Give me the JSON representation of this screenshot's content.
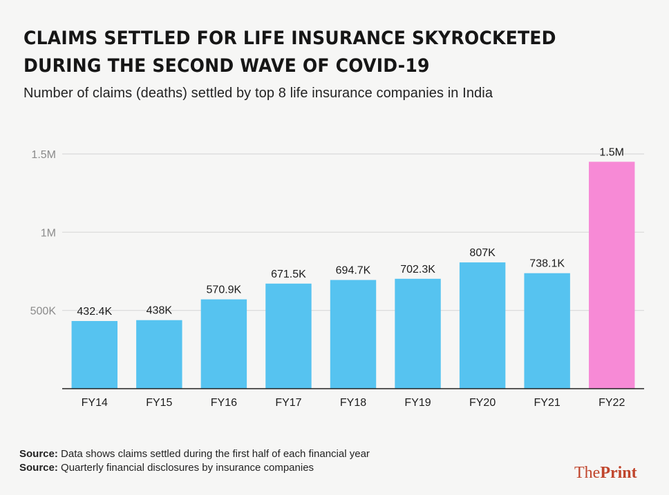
{
  "header": {
    "title_line1": "CLAIMS SETTLED FOR LIFE INSURANCE SKYROCKETED",
    "title_line2": "DURING THE SECOND WAVE OF COVID-19",
    "subtitle": "Number of claims (deaths) settled by top 8 life insurance companies in India"
  },
  "footer": {
    "notes": [
      {
        "label": "Source:",
        "text": " Data shows claims settled during the first half of each financial year"
      },
      {
        "label": "Source:",
        "text": " Quarterly financial disclosures by insurance companies"
      }
    ],
    "logo_regular": "The",
    "logo_bold": "Print"
  },
  "colors": {
    "bar": "#56c3f0",
    "highlight_bar": "#f78ad6",
    "gridline": "#d9d9d9",
    "baseline": "#222222",
    "tick_label": "#8a8a8a",
    "logo": "#c0452c"
  },
  "chart_data": {
    "type": "bar",
    "title": "CLAIMS SETTLED FOR LIFE INSURANCE SKYROCKETED DURING THE SECOND WAVE OF COVID-19",
    "subtitle": "Number of claims (deaths) settled by top 8 life insurance companies in India",
    "xlabel": "",
    "ylabel": "",
    "categories": [
      "FY14",
      "FY15",
      "FY16",
      "FY17",
      "FY18",
      "FY19",
      "FY20",
      "FY21",
      "FY22"
    ],
    "values": [
      432400,
      438000,
      570900,
      671500,
      694700,
      702300,
      807000,
      738100,
      1450000
    ],
    "data_labels": [
      "432.4K",
      "438K",
      "570.9K",
      "671.5K",
      "694.7K",
      "702.3K",
      "807K",
      "738.1K",
      "1.5M"
    ],
    "highlight_index": 8,
    "ylim": [
      0,
      1500000
    ],
    "yticks": [
      500000,
      1000000,
      1500000
    ],
    "ytick_labels": [
      "500K",
      "1M",
      "1.5M"
    ],
    "grid": true,
    "legend": "none"
  }
}
